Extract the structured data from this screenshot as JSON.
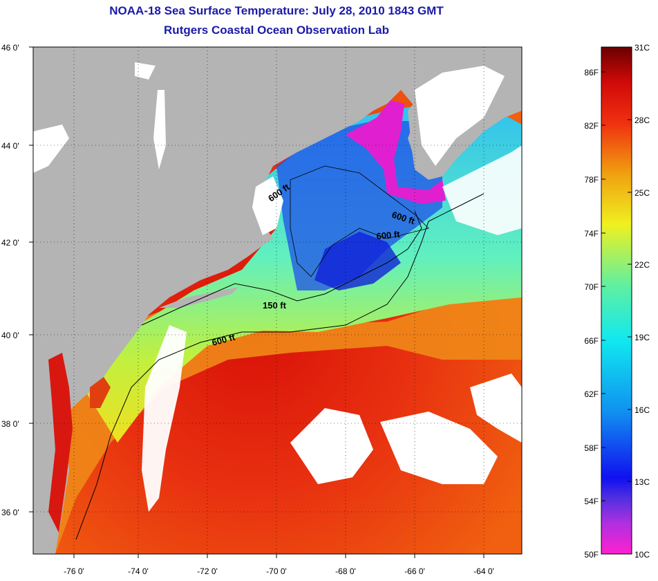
{
  "header": {
    "title": "NOAA-18 Sea Surface Temperature:  July 28, 2010 1843 GMT",
    "subtitle": "Rutgers Coastal Ocean Observation Lab"
  },
  "map": {
    "lat_labels": [
      "46 0'",
      "44 0'",
      "42 0'",
      "40 0'",
      "38 0'",
      "36 0'"
    ],
    "lon_labels": [
      "-76 0'",
      "-74 0'",
      "-72 0'",
      "-70 0'",
      "-68 0'",
      "-66 0'",
      "-64 0'"
    ],
    "contour_labels": [
      "600 ft",
      "600 ft",
      "600 ft",
      "150 ft",
      "600 ft"
    ],
    "colors": {
      "land": "#b4b4b4",
      "cloud": "#ffffff",
      "warm_stream": "#e82010",
      "shelf_cool": "#30d0f0",
      "gulf_of_maine": "#2040e0"
    }
  },
  "colorbar": {
    "fahrenheit_labels": [
      "86F",
      "82F",
      "78F",
      "74F",
      "70F",
      "66F",
      "62F",
      "58F",
      "54F",
      "50F"
    ],
    "celsius_labels": [
      "31C",
      "28C",
      "25C",
      "22C",
      "19C",
      "16C",
      "13C",
      "10C"
    ]
  }
}
